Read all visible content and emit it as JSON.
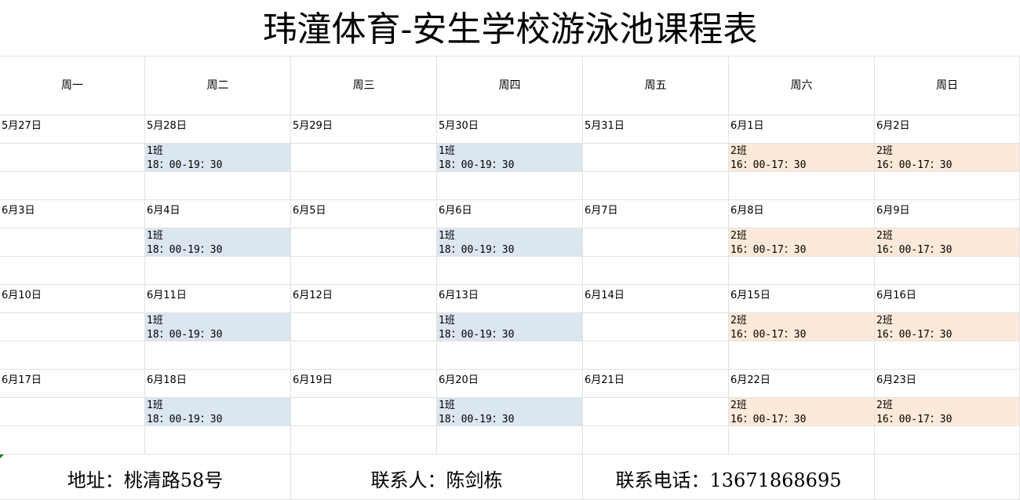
{
  "title": "玮潼体育-安生学校游泳池课程表",
  "weekdays": [
    "周一",
    "周二",
    "周三",
    "周四",
    "周五",
    "周六",
    "周日"
  ],
  "colors": {
    "class1": "#dce6f1",
    "class2": "#fde9d9"
  },
  "weeks": [
    {
      "dates": [
        "5月27日",
        "5月28日",
        "5月29日",
        "5月30日",
        "5月31日",
        "6月1日",
        "6月2日"
      ]
    },
    {
      "dates": [
        "6月3日",
        "6月4日",
        "6月5日",
        "6月6日",
        "6月7日",
        "6月8日",
        "6月9日"
      ]
    },
    {
      "dates": [
        "6月10日",
        "6月11日",
        "6月12日",
        "6月13日",
        "6月14日",
        "6月15日",
        "6月16日"
      ]
    },
    {
      "dates": [
        "6月17日",
        "6月18日",
        "6月19日",
        "6月20日",
        "6月21日",
        "6月22日",
        "6月23日"
      ]
    }
  ],
  "schedule": [
    null,
    {
      "class": "1班",
      "time": "18：00-19：30",
      "color": "blue"
    },
    null,
    {
      "class": "1班",
      "time": "18：00-19：30",
      "color": "blue"
    },
    null,
    {
      "class": "2班",
      "time": "16：00-17：30",
      "color": "orange"
    },
    {
      "class": "2班",
      "time": "16：00-17：30",
      "color": "orange"
    }
  ],
  "footer": {
    "address": "地址：桃清路58号",
    "contact": "联系人：陈剑栋",
    "phone": "联系电话：13671868695"
  }
}
